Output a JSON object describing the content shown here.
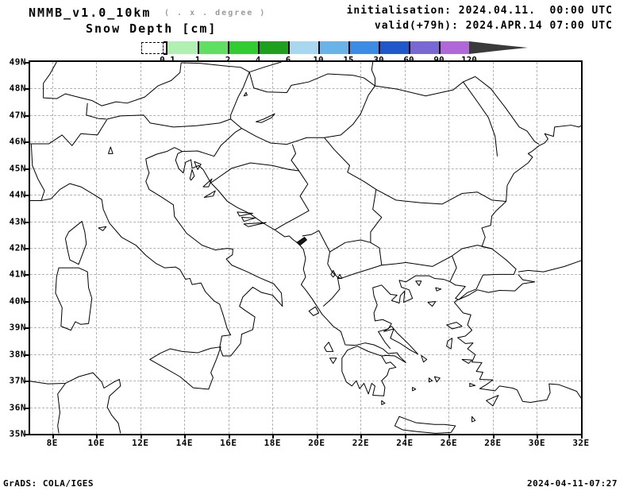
{
  "header": {
    "model": "NMMB_v1.0_10km",
    "resolution_note": "( . x . degree )",
    "variable": "Snow Depth [cm]",
    "init_line": "initialisation: 2024.04.11.  00:00 UTC",
    "valid_line": "valid(+79h): 2024.APR.14 07:00 UTC"
  },
  "colorbar": {
    "tick_labels": [
      "0.1",
      "1",
      "2",
      "4",
      "6",
      "10",
      "15",
      "30",
      "60",
      "90",
      "120"
    ],
    "segment_colors": [
      "#b0f0b0",
      "#60e060",
      "#30cc30",
      "#1da01d",
      "#a8d8f0",
      "#68b4e8",
      "#3a8ce4",
      "#2058cc",
      "#7868d4",
      "#b068d8"
    ],
    "overflow_arrow_color": "#3a3a3a"
  },
  "map": {
    "lat_tick_labels": [
      "49N",
      "48N",
      "47N",
      "46N",
      "45N",
      "44N",
      "43N",
      "42N",
      "41N",
      "40N",
      "39N",
      "38N",
      "37N",
      "36N",
      "35N"
    ],
    "lon_tick_labels": [
      "8E",
      "10E",
      "12E",
      "14E",
      "16E",
      "18E",
      "20E",
      "22E",
      "24E",
      "26E",
      "28E",
      "30E",
      "32E"
    ],
    "lon_min": 7,
    "lon_max": 32,
    "lat_min": 35,
    "lat_max": 49,
    "grid_color": "#b4b4b4",
    "frame_color": "#000000",
    "coast_color": "#000000"
  },
  "footer": {
    "left": "GrADS: COLA/IGES",
    "right": "2024-04-11-07:27"
  }
}
